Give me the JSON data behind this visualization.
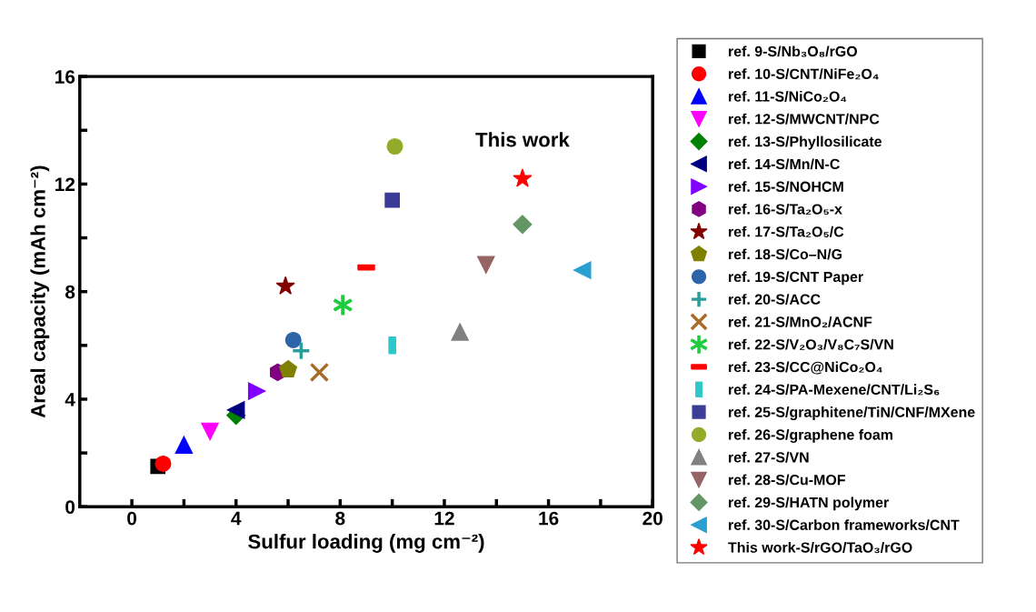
{
  "chart_data": {
    "type": "scatter",
    "xlabel": "Sulfur loading (mg cm⁻²)",
    "ylabel": "Areal capacity (mAh cm⁻²)",
    "xlim": [
      -2,
      20
    ],
    "ylim": [
      0,
      16
    ],
    "xticks": [
      0,
      {
        "value": 2,
        "label": null
      },
      4,
      {
        "value": 6,
        "label": null
      },
      8,
      {
        "value": 10,
        "label": null
      },
      12,
      {
        "value": 14,
        "label": null
      },
      16,
      {
        "value": 18,
        "label": null
      },
      20
    ],
    "yticks": [
      0,
      {
        "value": 2,
        "label": null
      },
      4,
      {
        "value": 6,
        "label": null
      },
      8,
      {
        "value": 10,
        "label": null
      },
      12,
      {
        "value": 14,
        "label": null
      },
      16
    ],
    "grid": false,
    "legend": "right",
    "annotations": [
      {
        "text": "This work",
        "x": 15,
        "y": 12.2
      }
    ],
    "series": [
      {
        "name": "ref. 9-S/Nb₃O₈/rGO",
        "color": "#000000",
        "marker": "square",
        "x": [
          1.0
        ],
        "values": [
          1.5
        ]
      },
      {
        "name": "ref. 10-S/CNT/NiFe₂O₄",
        "color": "#ff0000",
        "marker": "circle",
        "x": [
          1.2
        ],
        "values": [
          1.6
        ]
      },
      {
        "name": "ref. 11-S/NiCo₂O₄",
        "color": "#0000ff",
        "marker": "triangle",
        "x": [
          2.0
        ],
        "values": [
          2.3
        ]
      },
      {
        "name": "ref. 12-S/MWCNT/NPC",
        "color": "#ff00ff",
        "marker": "triangle_down",
        "x": [
          3.0
        ],
        "values": [
          2.8
        ]
      },
      {
        "name": "ref. 13-S/Phyllosilicate",
        "color": "#008000",
        "marker": "diamond",
        "x": [
          4.0
        ],
        "values": [
          3.4
        ]
      },
      {
        "name": "ref. 14-S/Mn/N-C",
        "color": "#000080",
        "marker": "triangle_left",
        "x": [
          4.0
        ],
        "values": [
          3.6
        ]
      },
      {
        "name": "ref. 15-S/NOHCM",
        "color": "#8000ff",
        "marker": "triangle_right",
        "x": [
          4.8
        ],
        "values": [
          4.3
        ]
      },
      {
        "name": "ref. 16-S/Ta₂O₅-x",
        "color": "#800080",
        "x": [
          5.6
        ],
        "values": [
          5.0
        ]
      },
      {
        "name": "ref. 17-S/Ta₂O₅/C",
        "color": "#800000",
        "marker": "star",
        "x": [
          5.9
        ],
        "values": [
          8.2
        ]
      },
      {
        "name": "ref. 18-S/Co–N/G",
        "color": "#808000",
        "x": [
          6.0
        ],
        "values": [
          5.1
        ]
      },
      {
        "name": "ref. 19-S/CNT Paper",
        "color": "#2e64a8",
        "marker": "circle",
        "x": [
          6.2
        ],
        "values": [
          6.2
        ]
      },
      {
        "name": "ref. 20-S/ACC",
        "color": "#2a9d9a",
        "marker": "plus",
        "x": [
          6.5
        ],
        "values": [
          5.8
        ]
      },
      {
        "name": "ref. 21-S/MnO₂/ACNF",
        "color": "#a86b28",
        "marker": "cross",
        "x": [
          7.2
        ],
        "values": [
          5.0
        ]
      },
      {
        "name": "ref. 22-S/V₂O₃/V₈C₇S/VN",
        "color": "#1fcc3f",
        "x": [
          8.1
        ],
        "values": [
          7.5
        ]
      },
      {
        "name": "ref. 23-S/CC@NiCo₂O₄",
        "color": "#ff0000",
        "x": [
          9.0
        ],
        "values": [
          8.9
        ]
      },
      {
        "name": "ref. 24-S/PA-Mexene/CNT/Li₂S₆",
        "color": "#2ec8c8",
        "x": [
          10.0
        ],
        "values": [
          6.0
        ]
      },
      {
        "name": "ref. 25-S/graphitene/TiN/CNF/MXene",
        "color": "#3c3c96",
        "marker": "square",
        "x": [
          10.0
        ],
        "values": [
          11.4
        ]
      },
      {
        "name": "ref. 26-S/graphene foam",
        "color": "#93ab2a",
        "marker": "circle",
        "x": [
          10.1
        ],
        "values": [
          13.4
        ]
      },
      {
        "name": "ref. 27-S/VN",
        "color": "#808080",
        "marker": "triangle",
        "x": [
          12.6
        ],
        "values": [
          6.5
        ]
      },
      {
        "name": "ref. 28-S/Cu-MOF",
        "color": "#966464",
        "marker": "triangle_down",
        "x": [
          13.6
        ],
        "values": [
          9.0
        ]
      },
      {
        "name": "ref. 29-S/HATN polymer",
        "color": "#639664",
        "marker": "diamond",
        "x": [
          15.0
        ],
        "values": [
          10.5
        ]
      },
      {
        "name": "ref. 30-S/Carbon frameworks/CNT",
        "color": "#2aa0d0",
        "marker": "triangle_left",
        "x": [
          17.3
        ],
        "values": [
          8.8
        ]
      },
      {
        "name": "This work-S/rGO/TaO₃/rGO",
        "color": "#ff0000",
        "marker": "star",
        "x": [
          15.0
        ],
        "values": [
          12.2
        ]
      }
    ]
  }
}
